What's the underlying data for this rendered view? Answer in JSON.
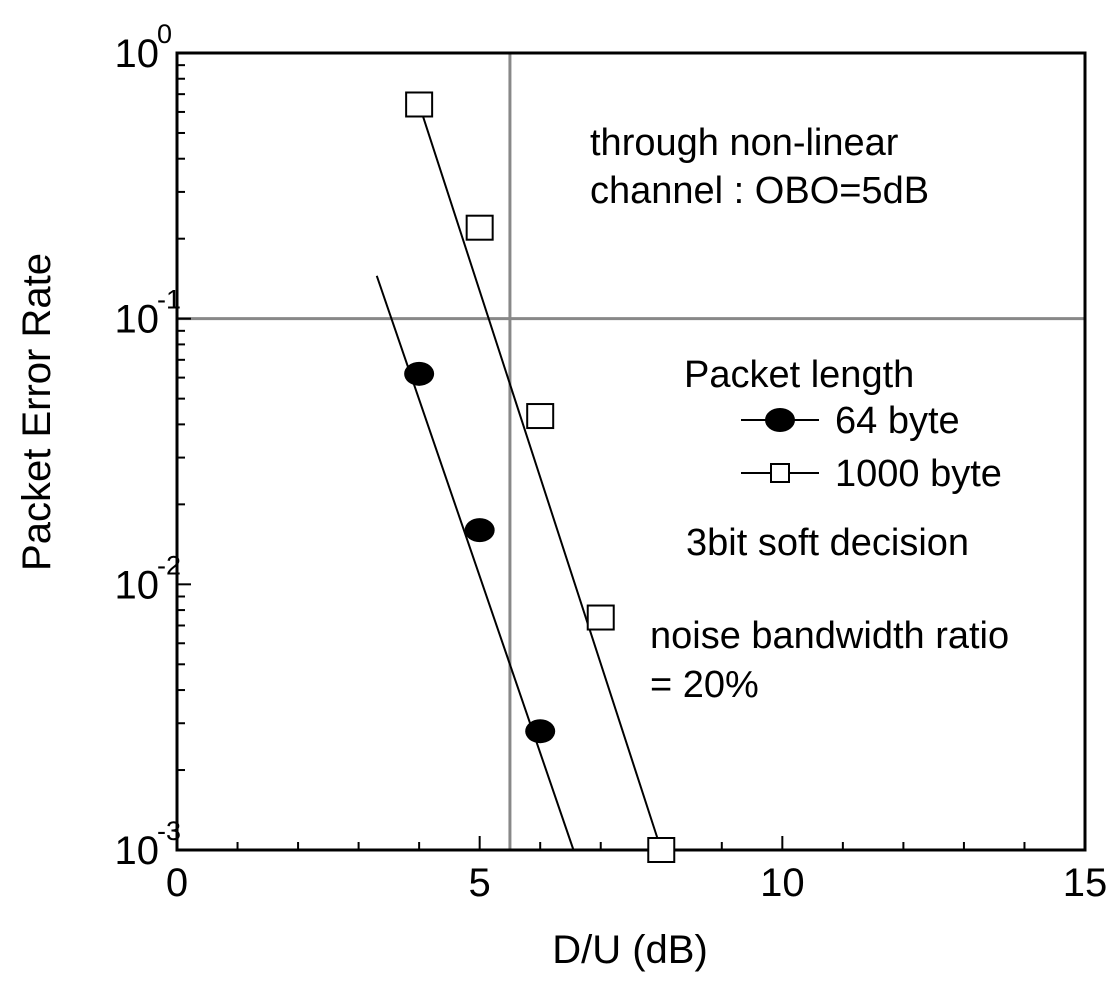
{
  "chart_data": {
    "type": "line",
    "xlabel": "D/U (dB)",
    "ylabel": "Packet Error Rate",
    "xlim": [
      0,
      15
    ],
    "ylim": [
      0.001,
      1
    ],
    "yscale": "log",
    "grid": false,
    "x_ticks": [
      {
        "value": 0,
        "label": "0"
      },
      {
        "value": 5,
        "label": "5"
      },
      {
        "value": 10,
        "label": "10"
      },
      {
        "value": 15,
        "label": "15"
      }
    ],
    "y_ticks": [
      {
        "value": 1,
        "base": "10",
        "exp": "0"
      },
      {
        "value": 0.1,
        "base": "10",
        "exp": "-1"
      },
      {
        "value": 0.01,
        "base": "10",
        "exp": "-2"
      },
      {
        "value": 0.001,
        "base": "10",
        "exp": "-3"
      }
    ],
    "reference_lines": {
      "x": 5.5,
      "y": 0.1
    },
    "series": [
      {
        "name": "64 byte",
        "marker": "filled-circle",
        "color": "#000000",
        "points": [
          [
            4,
            0.062
          ],
          [
            5,
            0.016
          ],
          [
            6,
            0.0028
          ]
        ],
        "fit_line": [
          [
            3.3,
            0.145
          ],
          [
            6.55,
            0.001
          ]
        ]
      },
      {
        "name": "1000 byte",
        "marker": "open-square",
        "color": "#000000",
        "points": [
          [
            4,
            0.64
          ],
          [
            5,
            0.22
          ],
          [
            6,
            0.043
          ],
          [
            7,
            0.0075
          ],
          [
            8,
            0.001
          ]
        ],
        "fit_line": [
          [
            4,
            0.64
          ],
          [
            8,
            0.001
          ]
        ]
      }
    ],
    "legend": {
      "title": "Packet length",
      "position": "right-middle"
    },
    "annotations": {
      "channel_line1": "through non-linear",
      "channel_line2": "channel : OBO=5dB",
      "decision": "3bit soft decision",
      "noise_line1": "noise bandwidth ratio",
      "noise_line2": "= 20%"
    }
  }
}
